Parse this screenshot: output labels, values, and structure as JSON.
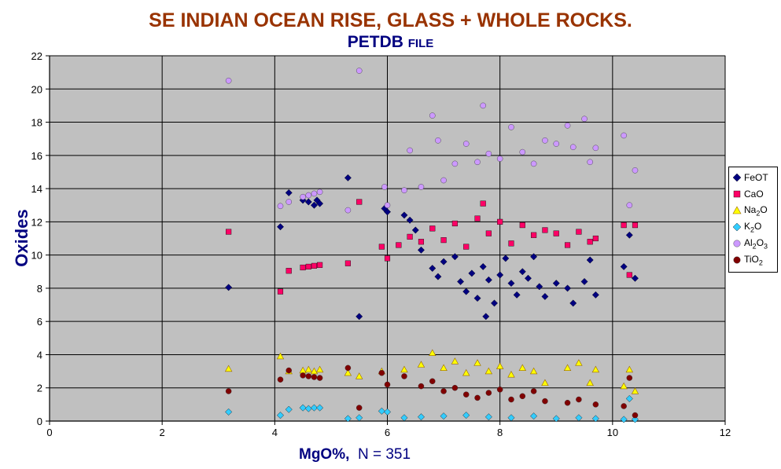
{
  "chart_data": {
    "type": "scatter",
    "title": "SE INDIAN OCEAN RISE, GLASS + WHOLE ROCKS.",
    "subtitle_main": "PETDB",
    "subtitle_small": "FILE",
    "xlabel_main": "MgO%,",
    "xlabel_n": "N = 351",
    "ylabel": "Oxides",
    "xlim": [
      0,
      12
    ],
    "ylim": [
      0,
      22
    ],
    "x_ticks": [
      "0",
      "2",
      "4",
      "6",
      "8",
      "10",
      "12"
    ],
    "y_ticks": [
      "0",
      "2",
      "4",
      "6",
      "8",
      "10",
      "12",
      "14",
      "16",
      "18",
      "20",
      "22"
    ],
    "grid": "major, both axes",
    "plot_background": "#c0c0c0",
    "legend_position": "right",
    "series": [
      {
        "name": "FeOT",
        "marker": "diamond",
        "color": "#000080",
        "points": [
          [
            3.18,
            8.05
          ],
          [
            4.1,
            11.7
          ],
          [
            4.25,
            13.75
          ],
          [
            4.5,
            13.3
          ],
          [
            4.6,
            13.2
          ],
          [
            4.7,
            13.0
          ],
          [
            4.75,
            13.3
          ],
          [
            4.8,
            13.1
          ],
          [
            5.3,
            14.65
          ],
          [
            5.5,
            6.3
          ],
          [
            6.0,
            12.6
          ],
          [
            5.95,
            12.8
          ],
          [
            6.3,
            12.4
          ],
          [
            6.4,
            12.1
          ],
          [
            6.5,
            11.5
          ],
          [
            6.6,
            10.3
          ],
          [
            6.8,
            9.2
          ],
          [
            6.9,
            8.7
          ],
          [
            7.0,
            9.6
          ],
          [
            7.2,
            9.9
          ],
          [
            7.3,
            8.4
          ],
          [
            7.4,
            7.8
          ],
          [
            7.5,
            8.9
          ],
          [
            7.6,
            7.4
          ],
          [
            7.7,
            9.3
          ],
          [
            7.75,
            6.3
          ],
          [
            7.8,
            8.5
          ],
          [
            7.9,
            7.1
          ],
          [
            8.0,
            8.8
          ],
          [
            8.1,
            9.8
          ],
          [
            8.2,
            8.3
          ],
          [
            8.3,
            7.6
          ],
          [
            8.4,
            9.0
          ],
          [
            8.5,
            8.6
          ],
          [
            8.6,
            9.9
          ],
          [
            8.7,
            8.1
          ],
          [
            8.8,
            7.5
          ],
          [
            9.0,
            8.3
          ],
          [
            9.2,
            8.0
          ],
          [
            9.3,
            7.1
          ],
          [
            9.5,
            8.4
          ],
          [
            9.6,
            9.7
          ],
          [
            9.7,
            7.6
          ],
          [
            10.2,
            9.3
          ],
          [
            10.3,
            11.2
          ],
          [
            10.4,
            8.6
          ]
        ]
      },
      {
        "name": "CaO",
        "marker": "square",
        "color": "#ff0066",
        "points": [
          [
            3.18,
            11.4
          ],
          [
            4.1,
            7.8
          ],
          [
            4.25,
            9.05
          ],
          [
            4.5,
            9.25
          ],
          [
            4.6,
            9.3
          ],
          [
            4.7,
            9.35
          ],
          [
            4.8,
            9.4
          ],
          [
            5.3,
            9.5
          ],
          [
            5.5,
            13.2
          ],
          [
            5.9,
            10.5
          ],
          [
            6.0,
            9.8
          ],
          [
            6.2,
            10.6
          ],
          [
            6.4,
            11.1
          ],
          [
            6.6,
            10.8
          ],
          [
            6.8,
            11.6
          ],
          [
            7.0,
            10.9
          ],
          [
            7.2,
            11.9
          ],
          [
            7.4,
            10.5
          ],
          [
            7.6,
            12.2
          ],
          [
            7.7,
            13.1
          ],
          [
            7.8,
            11.3
          ],
          [
            8.0,
            12.0
          ],
          [
            8.2,
            10.7
          ],
          [
            8.4,
            11.8
          ],
          [
            8.6,
            11.2
          ],
          [
            8.8,
            11.5
          ],
          [
            9.0,
            11.3
          ],
          [
            9.2,
            10.6
          ],
          [
            9.4,
            11.4
          ],
          [
            9.6,
            10.8
          ],
          [
            9.7,
            11.0
          ],
          [
            10.2,
            11.8
          ],
          [
            10.3,
            8.8
          ],
          [
            10.4,
            11.8
          ]
        ]
      },
      {
        "name": "Na2O",
        "marker": "triangle",
        "color": "#ffff00",
        "points": [
          [
            3.18,
            3.15
          ],
          [
            4.1,
            3.9
          ],
          [
            4.25,
            3.0
          ],
          [
            4.5,
            3.05
          ],
          [
            4.6,
            3.1
          ],
          [
            4.7,
            3.0
          ],
          [
            4.8,
            3.1
          ],
          [
            5.3,
            2.9
          ],
          [
            5.5,
            2.7
          ],
          [
            5.9,
            3.0
          ],
          [
            6.3,
            3.1
          ],
          [
            6.6,
            3.4
          ],
          [
            6.8,
            4.1
          ],
          [
            7.0,
            3.2
          ],
          [
            7.2,
            3.6
          ],
          [
            7.4,
            2.9
          ],
          [
            7.6,
            3.5
          ],
          [
            7.8,
            3.0
          ],
          [
            8.0,
            3.3
          ],
          [
            8.2,
            2.8
          ],
          [
            8.4,
            3.2
          ],
          [
            8.6,
            3.0
          ],
          [
            8.8,
            2.3
          ],
          [
            9.2,
            3.2
          ],
          [
            9.4,
            3.5
          ],
          [
            9.6,
            2.3
          ],
          [
            9.7,
            3.1
          ],
          [
            10.2,
            2.1
          ],
          [
            10.3,
            3.1
          ],
          [
            10.4,
            1.8
          ]
        ]
      },
      {
        "name": "K2O",
        "marker": "diamond",
        "color": "#33ccff",
        "points": [
          [
            3.18,
            0.55
          ],
          [
            4.1,
            0.35
          ],
          [
            4.25,
            0.7
          ],
          [
            4.5,
            0.8
          ],
          [
            4.6,
            0.75
          ],
          [
            4.7,
            0.8
          ],
          [
            4.8,
            0.8
          ],
          [
            5.3,
            0.15
          ],
          [
            5.5,
            0.2
          ],
          [
            5.9,
            0.6
          ],
          [
            6.0,
            0.55
          ],
          [
            6.3,
            0.2
          ],
          [
            6.6,
            0.25
          ],
          [
            7.0,
            0.3
          ],
          [
            7.4,
            0.35
          ],
          [
            7.8,
            0.25
          ],
          [
            8.2,
            0.2
          ],
          [
            8.6,
            0.3
          ],
          [
            9.0,
            0.15
          ],
          [
            9.4,
            0.2
          ],
          [
            9.7,
            0.15
          ],
          [
            10.2,
            0.1
          ],
          [
            10.3,
            1.35
          ],
          [
            10.4,
            0.1
          ]
        ]
      },
      {
        "name": "Al2O3",
        "marker": "circle",
        "color": "#cc99ff",
        "points": [
          [
            3.18,
            20.5
          ],
          [
            4.1,
            12.95
          ],
          [
            4.25,
            13.2
          ],
          [
            4.5,
            13.5
          ],
          [
            4.6,
            13.6
          ],
          [
            4.7,
            13.7
          ],
          [
            4.8,
            13.8
          ],
          [
            5.3,
            12.7
          ],
          [
            5.5,
            21.1
          ],
          [
            5.95,
            14.1
          ],
          [
            6.0,
            13.0
          ],
          [
            6.3,
            13.9
          ],
          [
            6.4,
            16.3
          ],
          [
            6.6,
            14.1
          ],
          [
            6.8,
            18.4
          ],
          [
            6.9,
            16.9
          ],
          [
            7.0,
            14.5
          ],
          [
            7.2,
            15.5
          ],
          [
            7.4,
            16.7
          ],
          [
            7.6,
            15.6
          ],
          [
            7.7,
            19.0
          ],
          [
            7.8,
            16.1
          ],
          [
            8.0,
            15.8
          ],
          [
            8.2,
            17.7
          ],
          [
            8.4,
            16.2
          ],
          [
            8.6,
            15.5
          ],
          [
            8.8,
            16.9
          ],
          [
            9.0,
            16.7
          ],
          [
            9.2,
            17.8
          ],
          [
            9.3,
            16.5
          ],
          [
            9.5,
            18.2
          ],
          [
            9.6,
            15.6
          ],
          [
            9.7,
            16.45
          ],
          [
            10.2,
            17.2
          ],
          [
            10.3,
            13.0
          ],
          [
            10.4,
            15.1
          ]
        ]
      },
      {
        "name": "TiO2",
        "marker": "circle",
        "color": "#800000",
        "points": [
          [
            3.18,
            1.8
          ],
          [
            4.1,
            2.5
          ],
          [
            4.25,
            3.05
          ],
          [
            4.5,
            2.75
          ],
          [
            4.6,
            2.7
          ],
          [
            4.7,
            2.65
          ],
          [
            4.8,
            2.6
          ],
          [
            5.3,
            3.2
          ],
          [
            5.5,
            0.8
          ],
          [
            5.9,
            2.9
          ],
          [
            6.0,
            2.2
          ],
          [
            6.3,
            2.7
          ],
          [
            6.6,
            2.1
          ],
          [
            6.8,
            2.4
          ],
          [
            7.0,
            1.8
          ],
          [
            7.2,
            2.0
          ],
          [
            7.4,
            1.6
          ],
          [
            7.6,
            1.4
          ],
          [
            7.8,
            1.7
          ],
          [
            8.0,
            1.9
          ],
          [
            8.2,
            1.3
          ],
          [
            8.4,
            1.5
          ],
          [
            8.6,
            1.8
          ],
          [
            8.8,
            1.2
          ],
          [
            9.2,
            1.1
          ],
          [
            9.4,
            1.3
          ],
          [
            9.7,
            1.0
          ],
          [
            10.2,
            0.9
          ],
          [
            10.3,
            2.6
          ],
          [
            10.4,
            0.35
          ]
        ]
      }
    ]
  },
  "legend": {
    "items": [
      {
        "label_pre": "FeOT",
        "sub": "",
        "label_post": "",
        "marker": "diamond",
        "color": "#000080"
      },
      {
        "label_pre": "CaO",
        "sub": "",
        "label_post": "",
        "marker": "square",
        "color": "#ff0066"
      },
      {
        "label_pre": "Na",
        "sub": "2",
        "label_post": "O",
        "marker": "triangle",
        "color": "#ffff00"
      },
      {
        "label_pre": "K",
        "sub": "2",
        "label_post": "O",
        "marker": "diamond",
        "color": "#33ccff"
      },
      {
        "label_pre": "Al",
        "sub": "2",
        "label_post": "O",
        "sub2": "3",
        "marker": "circle",
        "color": "#cc99ff"
      },
      {
        "label_pre": "TiO",
        "sub": "2",
        "label_post": "",
        "marker": "circle",
        "color": "#800000"
      }
    ]
  }
}
